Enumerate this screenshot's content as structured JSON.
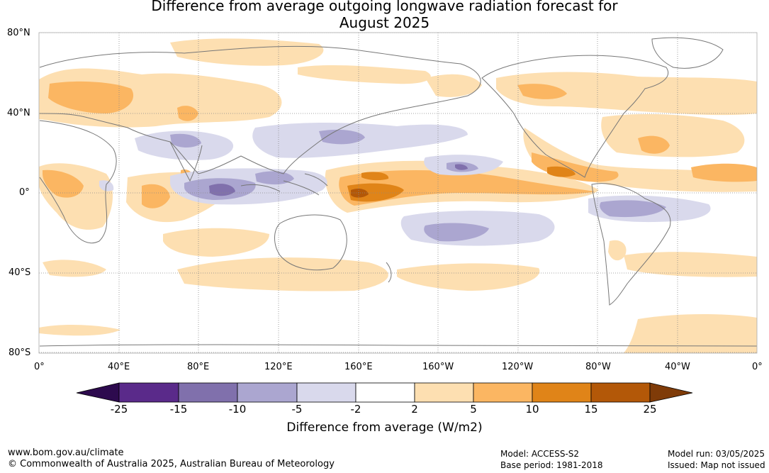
{
  "title": {
    "line1": "Difference from average outgoing longwave radiation forecast for",
    "line2": "August 2025"
  },
  "latitude_labels": [
    "80°N",
    "40°N",
    "0°",
    "40°S",
    "80°S"
  ],
  "longitude_labels": [
    "0°",
    "40°E",
    "80°E",
    "120°E",
    "160°E",
    "160°W",
    "120°W",
    "80°W",
    "40°W",
    "0°"
  ],
  "colorbar": {
    "label": "Difference from average (W/m2)",
    "ticks": [
      "-25",
      "-15",
      "-10",
      "-5",
      "-2",
      "2",
      "5",
      "10",
      "15",
      "25"
    ],
    "colors": {
      "below_-25": "#2d0a4e",
      "-25_-15": "#5a2a8a",
      "-15_-10": "#8070ac",
      "-10_-5": "#aba6d0",
      "-5_-2": "#d9d9ec",
      "-2_2": "#ffffff",
      "2_5": "#fddfb1",
      "5_10": "#fbb662",
      "10_15": "#e08418",
      "15_25": "#b35808",
      "above_25": "#7f3b08"
    }
  },
  "footer": {
    "website": "www.bom.gov.au/climate",
    "copyright": "© Commonwealth of Australia 2025, Australian Bureau of Meteorology",
    "model": "Model: ACCESS-S2",
    "base_period": "Base period: 1981-2018",
    "model_run": "Model run: 03/05/2025",
    "issued": "Issued: Map not issued"
  }
}
